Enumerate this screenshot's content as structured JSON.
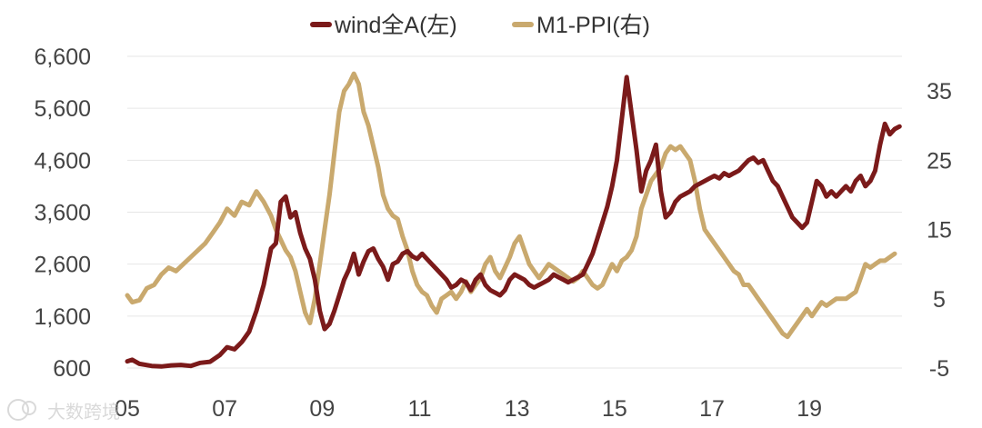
{
  "chart_data": {
    "type": "line",
    "title": "",
    "xlabel": "",
    "ylabel_left": "",
    "ylabel_right": "",
    "x_ticks": [
      "05",
      "07",
      "09",
      "11",
      "13",
      "15",
      "17",
      "19"
    ],
    "x_range": [
      2005.0,
      2020.9
    ],
    "y_left_ticks": [
      "600",
      "1,600",
      "2,600",
      "3,600",
      "4,600",
      "5,600",
      "6,600"
    ],
    "y_left_range": [
      600,
      6600
    ],
    "y_right_ticks": [
      "-5",
      "5",
      "15",
      "25",
      "35"
    ],
    "y_right_range": [
      -5,
      40
    ],
    "grid": "horizontal",
    "legend_position": "top",
    "colors": {
      "wind": "#7b1a1a",
      "m1ppi": "#c9a96e"
    },
    "series": [
      {
        "name": "wind全A(左)",
        "axis": "left",
        "points": [
          [
            2005.0,
            730
          ],
          [
            2005.1,
            760
          ],
          [
            2005.25,
            680
          ],
          [
            2005.5,
            640
          ],
          [
            2005.7,
            630
          ],
          [
            2005.9,
            650
          ],
          [
            2006.1,
            660
          ],
          [
            2006.3,
            640
          ],
          [
            2006.5,
            700
          ],
          [
            2006.7,
            720
          ],
          [
            2006.9,
            850
          ],
          [
            2007.05,
            1000
          ],
          [
            2007.2,
            960
          ],
          [
            2007.35,
            1100
          ],
          [
            2007.5,
            1300
          ],
          [
            2007.65,
            1700
          ],
          [
            2007.8,
            2200
          ],
          [
            2007.95,
            2900
          ],
          [
            2008.05,
            3000
          ],
          [
            2008.15,
            3800
          ],
          [
            2008.25,
            3900
          ],
          [
            2008.35,
            3500
          ],
          [
            2008.45,
            3600
          ],
          [
            2008.55,
            3200
          ],
          [
            2008.65,
            2900
          ],
          [
            2008.75,
            2700
          ],
          [
            2008.85,
            2300
          ],
          [
            2008.95,
            1700
          ],
          [
            2009.05,
            1350
          ],
          [
            2009.15,
            1450
          ],
          [
            2009.25,
            1700
          ],
          [
            2009.35,
            2000
          ],
          [
            2009.45,
            2300
          ],
          [
            2009.55,
            2500
          ],
          [
            2009.65,
            2800
          ],
          [
            2009.75,
            2400
          ],
          [
            2009.85,
            2650
          ],
          [
            2009.95,
            2850
          ],
          [
            2010.05,
            2900
          ],
          [
            2010.15,
            2700
          ],
          [
            2010.25,
            2550
          ],
          [
            2010.35,
            2300
          ],
          [
            2010.45,
            2600
          ],
          [
            2010.55,
            2650
          ],
          [
            2010.65,
            2800
          ],
          [
            2010.75,
            2850
          ],
          [
            2010.85,
            2750
          ],
          [
            2010.95,
            2700
          ],
          [
            2011.05,
            2800
          ],
          [
            2011.15,
            2700
          ],
          [
            2011.25,
            2600
          ],
          [
            2011.35,
            2500
          ],
          [
            2011.45,
            2400
          ],
          [
            2011.55,
            2300
          ],
          [
            2011.65,
            2150
          ],
          [
            2011.75,
            2200
          ],
          [
            2011.85,
            2300
          ],
          [
            2011.95,
            2250
          ],
          [
            2012.05,
            2100
          ],
          [
            2012.15,
            2300
          ],
          [
            2012.25,
            2400
          ],
          [
            2012.35,
            2200
          ],
          [
            2012.45,
            2100
          ],
          [
            2012.55,
            2050
          ],
          [
            2012.65,
            2000
          ],
          [
            2012.75,
            2100
          ],
          [
            2012.85,
            2300
          ],
          [
            2012.95,
            2400
          ],
          [
            2013.05,
            2350
          ],
          [
            2013.15,
            2300
          ],
          [
            2013.25,
            2200
          ],
          [
            2013.35,
            2150
          ],
          [
            2013.45,
            2200
          ],
          [
            2013.55,
            2250
          ],
          [
            2013.65,
            2300
          ],
          [
            2013.75,
            2400
          ],
          [
            2013.85,
            2350
          ],
          [
            2013.95,
            2300
          ],
          [
            2014.05,
            2250
          ],
          [
            2014.15,
            2300
          ],
          [
            2014.25,
            2350
          ],
          [
            2014.35,
            2400
          ],
          [
            2014.45,
            2600
          ],
          [
            2014.55,
            2800
          ],
          [
            2014.65,
            3100
          ],
          [
            2014.75,
            3400
          ],
          [
            2014.85,
            3700
          ],
          [
            2014.95,
            4100
          ],
          [
            2015.05,
            4600
          ],
          [
            2015.15,
            5400
          ],
          [
            2015.25,
            6200
          ],
          [
            2015.35,
            5500
          ],
          [
            2015.45,
            4800
          ],
          [
            2015.55,
            4000
          ],
          [
            2015.65,
            4400
          ],
          [
            2015.75,
            4600
          ],
          [
            2015.85,
            4900
          ],
          [
            2015.95,
            4000
          ],
          [
            2016.05,
            3500
          ],
          [
            2016.15,
            3600
          ],
          [
            2016.25,
            3800
          ],
          [
            2016.35,
            3900
          ],
          [
            2016.45,
            3950
          ],
          [
            2016.55,
            4000
          ],
          [
            2016.65,
            4100
          ],
          [
            2016.75,
            4150
          ],
          [
            2016.85,
            4200
          ],
          [
            2016.95,
            4250
          ],
          [
            2017.05,
            4300
          ],
          [
            2017.15,
            4250
          ],
          [
            2017.25,
            4350
          ],
          [
            2017.35,
            4300
          ],
          [
            2017.45,
            4350
          ],
          [
            2017.55,
            4400
          ],
          [
            2017.65,
            4500
          ],
          [
            2017.75,
            4600
          ],
          [
            2017.85,
            4650
          ],
          [
            2017.95,
            4550
          ],
          [
            2018.05,
            4600
          ],
          [
            2018.15,
            4400
          ],
          [
            2018.25,
            4200
          ],
          [
            2018.35,
            4100
          ],
          [
            2018.45,
            3900
          ],
          [
            2018.55,
            3700
          ],
          [
            2018.65,
            3500
          ],
          [
            2018.75,
            3400
          ],
          [
            2018.85,
            3300
          ],
          [
            2018.95,
            3400
          ],
          [
            2019.05,
            3800
          ],
          [
            2019.15,
            4200
          ],
          [
            2019.25,
            4100
          ],
          [
            2019.35,
            3900
          ],
          [
            2019.45,
            4000
          ],
          [
            2019.55,
            3900
          ],
          [
            2019.65,
            4000
          ],
          [
            2019.75,
            4100
          ],
          [
            2019.85,
            4000
          ],
          [
            2019.95,
            4200
          ],
          [
            2020.05,
            4300
          ],
          [
            2020.15,
            4100
          ],
          [
            2020.25,
            4200
          ],
          [
            2020.35,
            4400
          ],
          [
            2020.45,
            4900
          ],
          [
            2020.55,
            5300
          ],
          [
            2020.65,
            5100
          ],
          [
            2020.75,
            5200
          ],
          [
            2020.85,
            5250
          ]
        ]
      },
      {
        "name": "M1-PPI(右)",
        "axis": "right",
        "points": [
          [
            2005.0,
            5.5
          ],
          [
            2005.1,
            4.5
          ],
          [
            2005.25,
            4.8
          ],
          [
            2005.4,
            6.5
          ],
          [
            2005.55,
            7.0
          ],
          [
            2005.7,
            8.5
          ],
          [
            2005.85,
            9.5
          ],
          [
            2006.0,
            9.0
          ],
          [
            2006.15,
            10.0
          ],
          [
            2006.3,
            11.0
          ],
          [
            2006.45,
            12.0
          ],
          [
            2006.6,
            13.0
          ],
          [
            2006.75,
            14.5
          ],
          [
            2006.9,
            16.0
          ],
          [
            2007.05,
            18.0
          ],
          [
            2007.2,
            17.0
          ],
          [
            2007.35,
            19.0
          ],
          [
            2007.5,
            18.5
          ],
          [
            2007.65,
            20.5
          ],
          [
            2007.8,
            19.0
          ],
          [
            2007.95,
            17.0
          ],
          [
            2008.05,
            15.0
          ],
          [
            2008.15,
            13.5
          ],
          [
            2008.25,
            12.0
          ],
          [
            2008.35,
            11.0
          ],
          [
            2008.45,
            9.0
          ],
          [
            2008.55,
            6.0
          ],
          [
            2008.65,
            3.0
          ],
          [
            2008.75,
            1.5
          ],
          [
            2008.85,
            5.0
          ],
          [
            2008.95,
            10.0
          ],
          [
            2009.05,
            15.0
          ],
          [
            2009.15,
            20.0
          ],
          [
            2009.25,
            26.0
          ],
          [
            2009.35,
            32.0
          ],
          [
            2009.45,
            35.0
          ],
          [
            2009.55,
            36.0
          ],
          [
            2009.65,
            37.5
          ],
          [
            2009.75,
            36.0
          ],
          [
            2009.85,
            32.0
          ],
          [
            2009.95,
            30.0
          ],
          [
            2010.05,
            27.0
          ],
          [
            2010.15,
            24.0
          ],
          [
            2010.25,
            20.0
          ],
          [
            2010.35,
            18.0
          ],
          [
            2010.45,
            17.0
          ],
          [
            2010.55,
            16.5
          ],
          [
            2010.65,
            14.0
          ],
          [
            2010.75,
            12.0
          ],
          [
            2010.85,
            9.0
          ],
          [
            2010.95,
            7.0
          ],
          [
            2011.05,
            6.0
          ],
          [
            2011.15,
            5.5
          ],
          [
            2011.25,
            4.0
          ],
          [
            2011.35,
            3.0
          ],
          [
            2011.45,
            5.0
          ],
          [
            2011.55,
            5.5
          ],
          [
            2011.65,
            6.0
          ],
          [
            2011.75,
            5.0
          ],
          [
            2011.85,
            6.0
          ],
          [
            2011.95,
            7.5
          ],
          [
            2012.05,
            6.0
          ],
          [
            2012.15,
            7.0
          ],
          [
            2012.25,
            8.0
          ],
          [
            2012.35,
            10.0
          ],
          [
            2012.45,
            11.0
          ],
          [
            2012.55,
            9.0
          ],
          [
            2012.65,
            8.0
          ],
          [
            2012.75,
            9.5
          ],
          [
            2012.85,
            11.0
          ],
          [
            2012.95,
            13.0
          ],
          [
            2013.05,
            14.0
          ],
          [
            2013.15,
            12.0
          ],
          [
            2013.25,
            10.0
          ],
          [
            2013.35,
            9.0
          ],
          [
            2013.45,
            8.0
          ],
          [
            2013.55,
            9.0
          ],
          [
            2013.65,
            10.0
          ],
          [
            2013.75,
            9.5
          ],
          [
            2013.85,
            9.0
          ],
          [
            2013.95,
            8.5
          ],
          [
            2014.05,
            8.0
          ],
          [
            2014.15,
            7.5
          ],
          [
            2014.25,
            8.0
          ],
          [
            2014.35,
            9.0
          ],
          [
            2014.45,
            8.0
          ],
          [
            2014.55,
            7.0
          ],
          [
            2014.65,
            6.5
          ],
          [
            2014.75,
            7.0
          ],
          [
            2014.85,
            8.5
          ],
          [
            2014.95,
            10.0
          ],
          [
            2015.05,
            9.0
          ],
          [
            2015.15,
            10.5
          ],
          [
            2015.25,
            11.0
          ],
          [
            2015.35,
            12.0
          ],
          [
            2015.45,
            14.0
          ],
          [
            2015.55,
            18.0
          ],
          [
            2015.65,
            20.0
          ],
          [
            2015.75,
            22.0
          ],
          [
            2015.85,
            23.0
          ],
          [
            2015.95,
            24.0
          ],
          [
            2016.05,
            26.0
          ],
          [
            2016.15,
            27.0
          ],
          [
            2016.25,
            26.5
          ],
          [
            2016.35,
            27.0
          ],
          [
            2016.45,
            26.0
          ],
          [
            2016.55,
            25.0
          ],
          [
            2016.65,
            22.0
          ],
          [
            2016.75,
            18.0
          ],
          [
            2016.85,
            15.0
          ],
          [
            2016.95,
            14.0
          ],
          [
            2017.05,
            13.0
          ],
          [
            2017.15,
            12.0
          ],
          [
            2017.25,
            11.0
          ],
          [
            2017.35,
            10.0
          ],
          [
            2017.45,
            9.0
          ],
          [
            2017.55,
            8.5
          ],
          [
            2017.65,
            7.0
          ],
          [
            2017.75,
            7.0
          ],
          [
            2017.85,
            6.0
          ],
          [
            2017.95,
            5.0
          ],
          [
            2018.05,
            4.0
          ],
          [
            2018.15,
            3.0
          ],
          [
            2018.25,
            2.0
          ],
          [
            2018.35,
            1.0
          ],
          [
            2018.45,
            0.0
          ],
          [
            2018.55,
            -0.5
          ],
          [
            2018.65,
            0.5
          ],
          [
            2018.75,
            1.5
          ],
          [
            2018.85,
            2.5
          ],
          [
            2018.95,
            3.5
          ],
          [
            2019.05,
            2.5
          ],
          [
            2019.15,
            3.5
          ],
          [
            2019.25,
            4.5
          ],
          [
            2019.35,
            4.0
          ],
          [
            2019.45,
            4.5
          ],
          [
            2019.55,
            5.0
          ],
          [
            2019.65,
            5.0
          ],
          [
            2019.75,
            5.0
          ],
          [
            2019.85,
            5.5
          ],
          [
            2019.95,
            6.0
          ],
          [
            2020.05,
            8.0
          ],
          [
            2020.15,
            10.0
          ],
          [
            2020.25,
            9.5
          ],
          [
            2020.35,
            10.0
          ],
          [
            2020.45,
            10.5
          ],
          [
            2020.55,
            10.5
          ],
          [
            2020.65,
            11.0
          ],
          [
            2020.75,
            11.5
          ]
        ]
      }
    ]
  },
  "watermark": "大数跨境"
}
